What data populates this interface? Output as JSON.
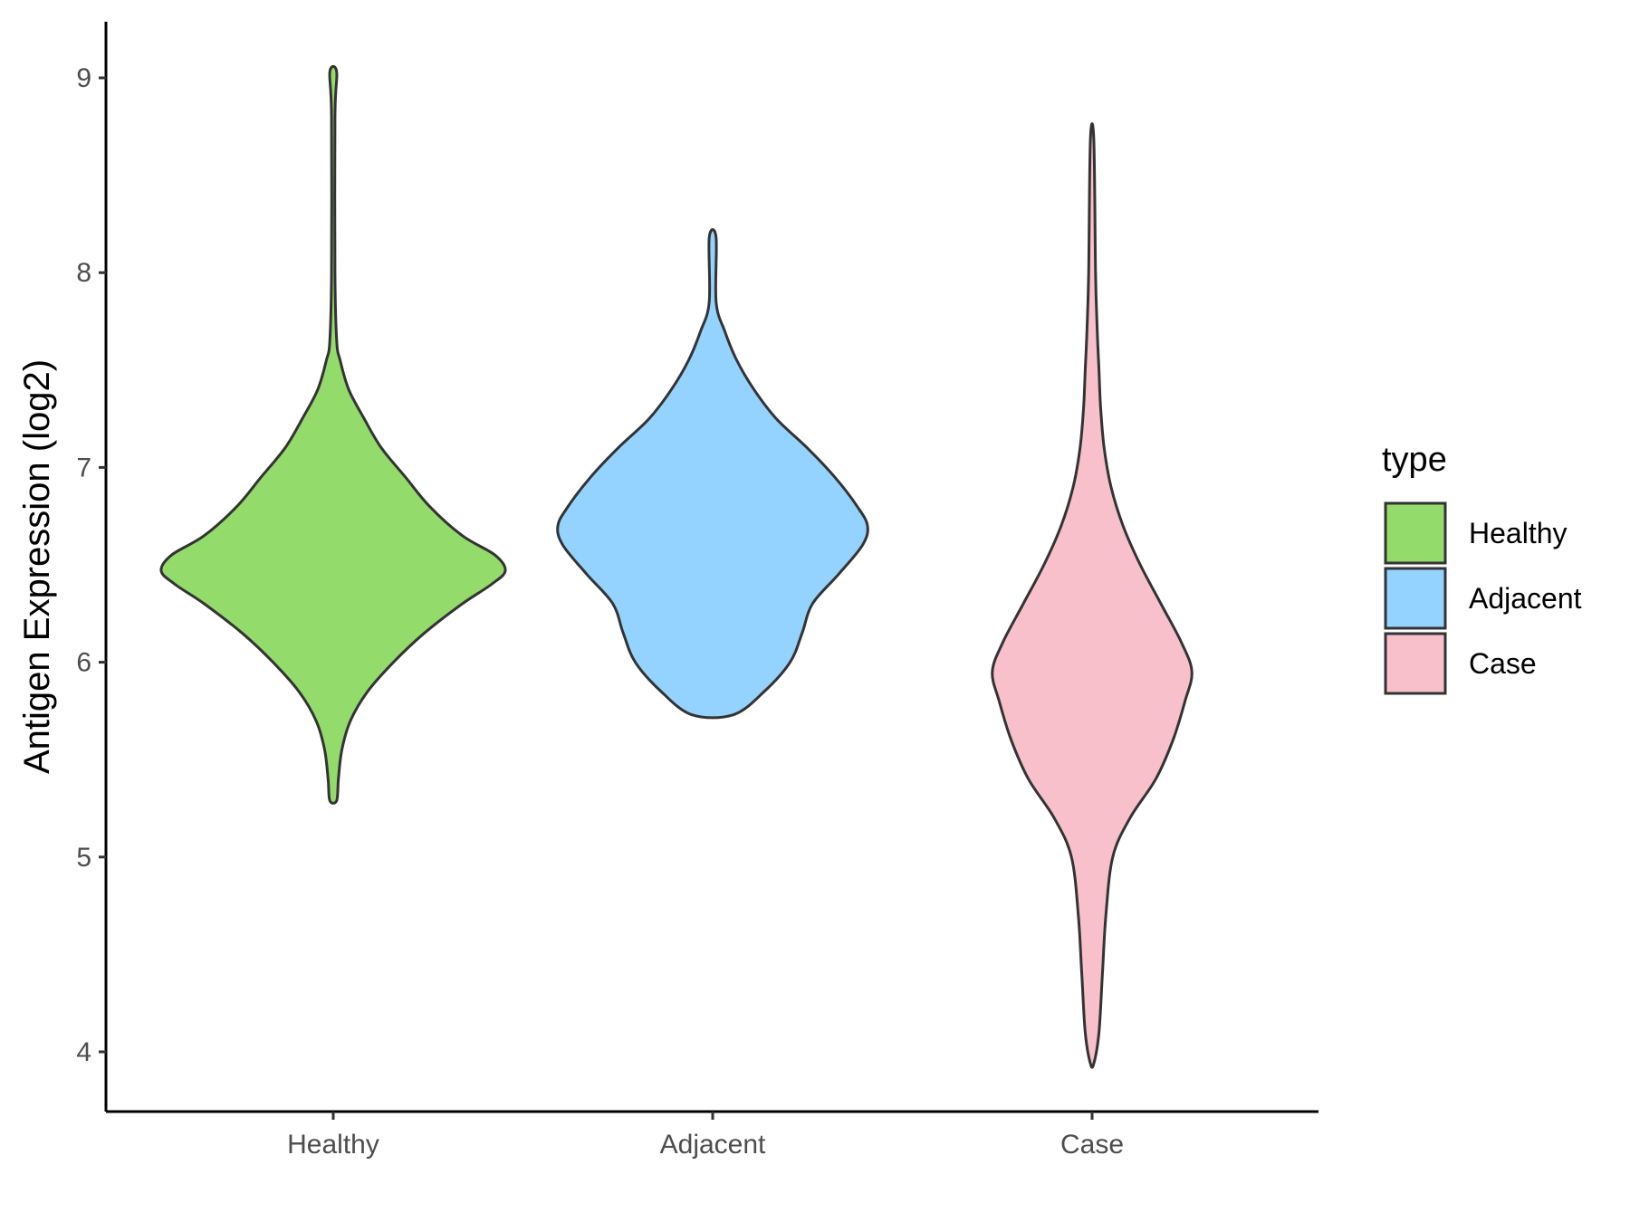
{
  "chart_data": {
    "type": "violin",
    "title": "",
    "xlabel": "",
    "ylabel": "Antigen Expression (log2)",
    "ylim": [
      3.6,
      9.3
    ],
    "yticks": [
      4,
      5,
      6,
      7,
      8,
      9
    ],
    "categories": [
      "Healthy",
      "Adjacent",
      "Case"
    ],
    "grid": false,
    "legend": {
      "title": "type",
      "position": "right",
      "items": [
        {
          "label": "Healthy",
          "color": "#93DB6A"
        },
        {
          "label": "Adjacent",
          "color": "#94D3FF"
        },
        {
          "label": "Case",
          "color": "#F7C0CB"
        }
      ]
    },
    "series": [
      {
        "category": "Healthy",
        "color": "#93DB6A",
        "min": 5.29,
        "max": 9.03,
        "density_profile": [
          {
            "y": 5.29,
            "w": 0.02
          },
          {
            "y": 5.4,
            "w": 0.03
          },
          {
            "y": 5.55,
            "w": 0.05
          },
          {
            "y": 5.7,
            "w": 0.1
          },
          {
            "y": 5.85,
            "w": 0.2
          },
          {
            "y": 6.0,
            "w": 0.35
          },
          {
            "y": 6.15,
            "w": 0.53
          },
          {
            "y": 6.3,
            "w": 0.75
          },
          {
            "y": 6.4,
            "w": 0.92
          },
          {
            "y": 6.47,
            "w": 1.0
          },
          {
            "y": 6.55,
            "w": 0.94
          },
          {
            "y": 6.65,
            "w": 0.75
          },
          {
            "y": 6.8,
            "w": 0.56
          },
          {
            "y": 6.95,
            "w": 0.42
          },
          {
            "y": 7.1,
            "w": 0.28
          },
          {
            "y": 7.25,
            "w": 0.18
          },
          {
            "y": 7.4,
            "w": 0.09
          },
          {
            "y": 7.55,
            "w": 0.04
          },
          {
            "y": 7.65,
            "w": 0.02
          },
          {
            "y": 8.0,
            "w": 0.01
          },
          {
            "y": 8.8,
            "w": 0.01
          },
          {
            "y": 9.03,
            "w": 0.02
          }
        ]
      },
      {
        "category": "Adjacent",
        "color": "#94D3FF",
        "min": 5.73,
        "max": 8.18,
        "density_profile": [
          {
            "y": 5.73,
            "w": 0.12
          },
          {
            "y": 5.85,
            "w": 0.3
          },
          {
            "y": 6.0,
            "w": 0.45
          },
          {
            "y": 6.15,
            "w": 0.52
          },
          {
            "y": 6.3,
            "w": 0.58
          },
          {
            "y": 6.45,
            "w": 0.73
          },
          {
            "y": 6.6,
            "w": 0.87
          },
          {
            "y": 6.7,
            "w": 0.9
          },
          {
            "y": 6.8,
            "w": 0.84
          },
          {
            "y": 6.95,
            "w": 0.71
          },
          {
            "y": 7.1,
            "w": 0.55
          },
          {
            "y": 7.25,
            "w": 0.37
          },
          {
            "y": 7.4,
            "w": 0.24
          },
          {
            "y": 7.55,
            "w": 0.14
          },
          {
            "y": 7.7,
            "w": 0.07
          },
          {
            "y": 7.85,
            "w": 0.02
          },
          {
            "y": 8.18,
            "w": 0.02
          }
        ]
      },
      {
        "category": "Case",
        "color": "#F7C0CB",
        "min": 3.94,
        "max": 8.68,
        "density_profile": [
          {
            "y": 3.94,
            "w": 0.01
          },
          {
            "y": 4.1,
            "w": 0.04
          },
          {
            "y": 4.4,
            "w": 0.06
          },
          {
            "y": 4.7,
            "w": 0.08
          },
          {
            "y": 5.0,
            "w": 0.12
          },
          {
            "y": 5.2,
            "w": 0.22
          },
          {
            "y": 5.4,
            "w": 0.37
          },
          {
            "y": 5.6,
            "w": 0.47
          },
          {
            "y": 5.8,
            "w": 0.54
          },
          {
            "y": 5.95,
            "w": 0.58
          },
          {
            "y": 6.1,
            "w": 0.52
          },
          {
            "y": 6.3,
            "w": 0.4
          },
          {
            "y": 6.5,
            "w": 0.28
          },
          {
            "y": 6.7,
            "w": 0.18
          },
          {
            "y": 6.9,
            "w": 0.11
          },
          {
            "y": 7.1,
            "w": 0.07
          },
          {
            "y": 7.3,
            "w": 0.05
          },
          {
            "y": 7.5,
            "w": 0.04
          },
          {
            "y": 7.7,
            "w": 0.03
          },
          {
            "y": 8.0,
            "w": 0.02
          },
          {
            "y": 8.68,
            "w": 0.01
          }
        ]
      }
    ]
  }
}
